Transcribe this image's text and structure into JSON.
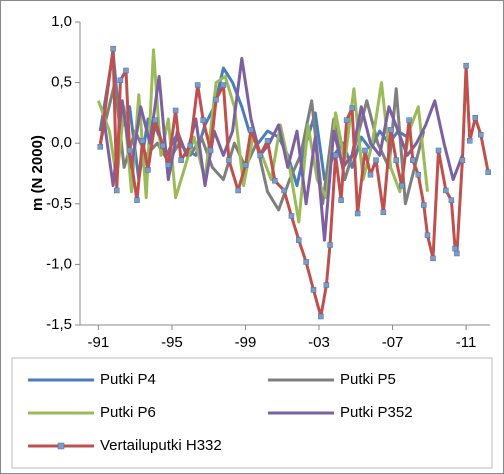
{
  "chart_data": {
    "type": "line",
    "y_label": "m (N 2000)",
    "xlim": [
      1990,
      2012.3
    ],
    "xticks": [
      {
        "value": 1991,
        "label": "-91"
      },
      {
        "value": 1995,
        "label": "-95"
      },
      {
        "value": 1999,
        "label": "-99"
      },
      {
        "value": 2003,
        "label": "-03"
      },
      {
        "value": 2007,
        "label": "-07"
      },
      {
        "value": 2011,
        "label": "-11"
      }
    ],
    "ylim": [
      -1.5,
      1.0
    ],
    "yticks": [
      {
        "value": -1.5,
        "label": "-1,5"
      },
      {
        "value": -1.0,
        "label": "-1,0"
      },
      {
        "value": -0.5,
        "label": "-0,5"
      },
      {
        "value": 0,
        "label": "0,0"
      },
      {
        "value": 0.5,
        "label": "0,5"
      },
      {
        "value": 1.0,
        "label": "1,0"
      }
    ],
    "grid": false,
    "legend": "bottom",
    "series": [
      {
        "name": "Putki P4",
        "color": "#4a7ebb",
        "x": [
          1991.1,
          1991.8,
          1992.2,
          1992.7,
          1993.2,
          1993.7,
          1994.2,
          1994.7,
          1995.2,
          1995.7,
          1996.3,
          1996.8,
          1997.3,
          1997.8,
          1998.3,
          1998.8,
          1999.2,
          1999.7,
          2000.2,
          2000.8,
          2001.3,
          2001.8,
          2002.3,
          2002.8,
          2003.3,
          2003.8,
          2004.3,
          2004.8,
          2005.3,
          2005.8,
          2006.3,
          2006.8,
          2007.3,
          2007.8
        ],
        "values": [
          0.1,
          0.75,
          0.1,
          0.3,
          -0.3,
          0.2,
          0.1,
          -0.1,
          0.05,
          -0.05,
          -0.1,
          0.15,
          0.3,
          0.62,
          0.5,
          0.3,
          0.1,
          0.0,
          0.1,
          0.05,
          -0.1,
          -0.35,
          0.0,
          0.25,
          -0.3,
          -0.1,
          0.0,
          -0.2,
          0.05,
          -0.05,
          0.1,
          0.0,
          0.1,
          0.05
        ]
      },
      {
        "name": "Putki P5",
        "color": "#7f7f7f",
        "x": [
          1991.1,
          1991.9,
          1992.4,
          1993.0,
          1993.6,
          1994.2,
          1994.8,
          1995.4,
          1996.0,
          1996.6,
          1997.2,
          1997.8,
          1998.4,
          1999.0,
          1999.6,
          2000.2,
          2000.8,
          2001.4,
          2002.0,
          2002.6,
          2003.2,
          2003.8,
          2004.4,
          2005.0,
          2005.6,
          2006.2,
          2006.8,
          2007.2,
          2007.7,
          2008.2,
          2008.7
        ],
        "values": [
          0.0,
          0.5,
          -0.2,
          0.1,
          -0.1,
          0.0,
          -0.15,
          0.0,
          -0.1,
          0.05,
          -0.2,
          -0.3,
          0.0,
          -0.2,
          0.0,
          -0.4,
          -0.55,
          -0.3,
          -0.1,
          0.35,
          -0.5,
          0.2,
          -0.3,
          0.0,
          0.35,
          0.0,
          -0.2,
          0.45,
          -0.5,
          -0.2,
          0.1
        ]
      },
      {
        "name": "Putki P6",
        "color": "#9bbb59",
        "x": [
          1991.0,
          1991.6,
          1992.0,
          1992.4,
          1992.8,
          1993.2,
          1993.6,
          1994.0,
          1994.4,
          1994.8,
          1995.2,
          1995.7,
          1996.2,
          1996.8,
          1997.4,
          1997.9,
          1998.4,
          1998.9,
          1999.4,
          1999.9,
          2000.4,
          2000.9,
          2001.4,
          2001.9,
          2002.4,
          2002.9,
          2003.4,
          2003.9,
          2004.4,
          2004.9,
          2005.4,
          2005.9,
          2006.4,
          2006.9,
          2007.4,
          2007.9,
          2008.4,
          2008.9
        ],
        "values": [
          0.35,
          0.1,
          -0.3,
          0.3,
          -0.4,
          0.4,
          -0.45,
          0.77,
          -0.1,
          0.2,
          -0.45,
          -0.2,
          0.05,
          -0.3,
          0.5,
          0.55,
          0.3,
          -0.35,
          0.05,
          -0.1,
          -0.3,
          0.15,
          -0.2,
          -0.65,
          0.15,
          -0.3,
          -0.45,
          0.25,
          -0.15,
          0.45,
          -0.3,
          0.0,
          0.5,
          -0.2,
          -0.4,
          0.1,
          0.3,
          -0.4
        ]
      },
      {
        "name": "Putki P352",
        "color": "#7d60a0",
        "x": [
          1991.3,
          1991.8,
          1992.3,
          1992.8,
          1993.3,
          1993.8,
          1994.3,
          1994.8,
          1995.3,
          1995.8,
          1996.3,
          1996.8,
          1997.3,
          1997.8,
          1998.3,
          1998.8,
          1999.3,
          1999.8,
          2000.3,
          2000.8,
          2001.3,
          2001.8,
          2002.3,
          2002.8,
          2003.3,
          2003.8,
          2004.3,
          2004.8,
          2005.3,
          2005.8,
          2006.3,
          2006.8,
          2007.3,
          2007.8,
          2008.3,
          2008.8,
          2009.3,
          2009.8,
          2010.3,
          2010.8
        ],
        "values": [
          0.2,
          -0.35,
          0.35,
          -0.2,
          0.3,
          0.0,
          0.55,
          -0.3,
          0.1,
          -0.1,
          0.2,
          -0.35,
          0.1,
          -0.1,
          0.1,
          0.7,
          0.2,
          -0.1,
          0.0,
          0.15,
          -0.2,
          0.1,
          -0.5,
          0.05,
          -0.8,
          0.1,
          -0.2,
          -0.1,
          0.3,
          0.0,
          -0.1,
          0.3,
          0.1,
          -0.1,
          0.0,
          0.15,
          0.35,
          0.0,
          -0.3,
          -0.1
        ]
      },
      {
        "name": "Vertailuputki H332",
        "color": "#c0504d",
        "x": [
          1991.1,
          1991.8,
          1992.0,
          1992.2,
          1992.5,
          1992.7,
          1993.1,
          1993.4,
          1993.7,
          1994.1,
          1994.5,
          1994.8,
          1995.2,
          1995.5,
          1996.0,
          1996.4,
          1996.7,
          1997.1,
          1997.4,
          1997.8,
          1998.1,
          1998.6,
          1999.0,
          1999.3,
          1999.8,
          2000.2,
          2000.6,
          2001.1,
          2001.5,
          2001.9,
          2002.3,
          2002.7,
          2003.1,
          2003.4,
          2003.6,
          2003.9,
          2004.2,
          2004.5,
          2004.8,
          2005.1,
          2005.5,
          2005.8,
          2006.1,
          2006.5,
          2006.9,
          2007.2,
          2007.5,
          2007.9,
          2008.1,
          2008.4,
          2008.7,
          2008.9,
          2009.2,
          2009.5,
          2009.9,
          2010.2,
          2010.4,
          2010.5,
          2010.8,
          2011.0,
          2011.2,
          2011.5,
          2011.8,
          2012.2
        ],
        "values": [
          -0.03,
          0.78,
          -0.39,
          0.52,
          0.6,
          -0.06,
          -0.47,
          0.02,
          -0.22,
          0.19,
          -0.02,
          -0.18,
          0.27,
          -0.14,
          -0.02,
          0.48,
          0.19,
          -0.06,
          0.36,
          0.48,
          -0.14,
          -0.39,
          -0.18,
          0.11,
          -0.1,
          0.02,
          -0.31,
          -0.39,
          -0.6,
          -0.8,
          -0.98,
          -1.21,
          -1.43,
          -1.17,
          -0.84,
          -0.1,
          -0.47,
          0.19,
          0.29,
          -0.58,
          -0.06,
          -0.26,
          -0.14,
          -0.57,
          0.11,
          -0.14,
          -0.35,
          0.19,
          -0.14,
          -0.26,
          -0.51,
          -0.76,
          -0.95,
          -0.06,
          -0.39,
          -0.47,
          -0.87,
          -0.91,
          -0.14,
          0.64,
          0.02,
          0.21,
          0.07,
          -0.24
        ]
      }
    ]
  }
}
